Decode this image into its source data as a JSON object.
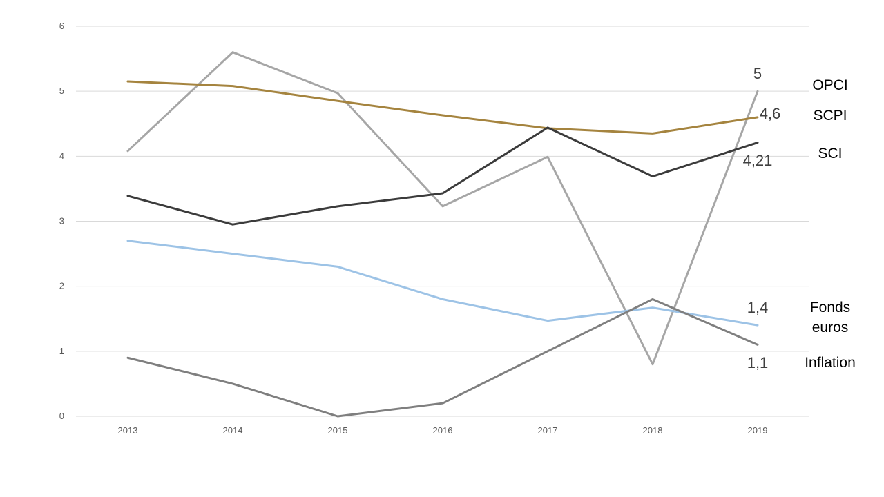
{
  "chart_data": {
    "type": "line",
    "title": "",
    "xlabel": "",
    "ylabel": "",
    "x": [
      "2013",
      "2014",
      "2015",
      "2016",
      "2017",
      "2018",
      "2019"
    ],
    "ylim": [
      0,
      6
    ],
    "yticks": [
      0,
      1,
      2,
      3,
      4,
      5,
      6
    ],
    "grid": true,
    "legend": "none",
    "series": [
      {
        "name": "OPCI",
        "color": "#a6a6a6",
        "values": [
          4.08,
          5.6,
          4.97,
          3.23,
          3.99,
          0.8,
          5.0
        ],
        "end_label": "5",
        "side_label": [
          "OPCI"
        ]
      },
      {
        "name": "SCPI",
        "color": "#a5843f",
        "values": [
          5.15,
          5.08,
          4.85,
          4.63,
          4.43,
          4.35,
          4.6
        ],
        "end_label": "4,6",
        "side_label": [
          "SCPI"
        ]
      },
      {
        "name": "SCI",
        "color": "#3b3b3b",
        "values": [
          3.39,
          2.95,
          3.23,
          3.43,
          4.44,
          3.69,
          4.21
        ],
        "end_label": "4,21",
        "side_label": [
          "SCI"
        ]
      },
      {
        "name": "Fonds euros",
        "color": "#9dc3e6",
        "values": [
          2.7,
          2.5,
          2.3,
          1.8,
          1.47,
          1.67,
          1.4
        ],
        "end_label": "1,4",
        "side_label": [
          "Fonds",
          "euros"
        ]
      },
      {
        "name": "Inflation",
        "color": "#7f7f7f",
        "values": [
          0.9,
          0.5,
          0.0,
          0.2,
          1.0,
          1.8,
          1.1
        ],
        "end_label": "1,1",
        "side_label": [
          "Inflation"
        ]
      }
    ]
  }
}
